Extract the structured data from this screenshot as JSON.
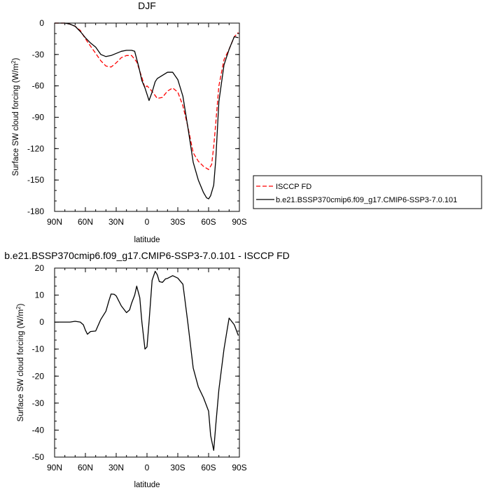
{
  "chart_data": [
    {
      "type": "line",
      "title": "DJF",
      "xlabel": "latitude",
      "ylabel": "Surface SW cloud forcing (W/m²)",
      "ylim": [
        -180,
        0
      ],
      "xlim": [
        90,
        -90
      ],
      "xticks": [
        90,
        60,
        30,
        0,
        -30,
        -60,
        -90
      ],
      "xtick_labels": [
        "90N",
        "60N",
        "30N",
        "0",
        "30S",
        "60S",
        "90S"
      ],
      "yticks": [
        0,
        -30,
        -60,
        -90,
        -120,
        -150,
        -180
      ],
      "ytick_labels": [
        "0",
        "-30",
        "-60",
        "-90",
        "-120",
        "-150",
        "-180"
      ],
      "grid": false,
      "legend_position": "right",
      "series": [
        {
          "name": "ISCCP FD",
          "color": "#ff0000",
          "dash": "dashed",
          "x": [
            90,
            85,
            80,
            75,
            70,
            65,
            60,
            55,
            50,
            45,
            40,
            35,
            30,
            25,
            20,
            15,
            10,
            5,
            2,
            0,
            -3,
            -7,
            -10,
            -15,
            -20,
            -25,
            -30,
            -35,
            -40,
            -45,
            -50,
            -55,
            -60,
            -63,
            -65,
            -67,
            -70,
            -75,
            -80,
            -85,
            -89
          ],
          "y": [
            0,
            0,
            0,
            -1,
            -3,
            -7,
            -15,
            -22,
            -29,
            -36,
            -41,
            -42,
            -38,
            -33,
            -31,
            -31,
            -37,
            -52,
            -62,
            -60,
            -63,
            -68,
            -72,
            -71,
            -65,
            -62,
            -66,
            -79,
            -100,
            -124,
            -132,
            -137,
            -140,
            -135,
            -118,
            -95,
            -60,
            -35,
            -25,
            -13,
            -9
          ]
        },
        {
          "name": "b.e21.BSSP370cmip6.f09_g17.CMIP6-SSP3-7.0.101",
          "color": "#000000",
          "dash": "solid",
          "x": [
            90,
            85,
            80,
            75,
            70,
            65,
            60,
            55,
            50,
            45,
            40,
            35,
            30,
            25,
            20,
            15,
            12,
            8,
            5,
            2,
            0,
            -2,
            -5,
            -8,
            -10,
            -15,
            -20,
            -25,
            -30,
            -35,
            -40,
            -45,
            -50,
            -55,
            -58,
            -60,
            -62,
            -65,
            -67,
            -70,
            -75,
            -80,
            -85,
            -89
          ],
          "y": [
            0,
            0,
            0,
            -1,
            -3,
            -8,
            -14,
            -19,
            -23,
            -30,
            -32,
            -31,
            -29,
            -27,
            -26,
            -26,
            -27,
            -42,
            -55,
            -62,
            -68,
            -74,
            -66,
            -56,
            -53,
            -50,
            -47,
            -47,
            -54,
            -70,
            -101,
            -133,
            -150,
            -162,
            -167,
            -168,
            -165,
            -155,
            -130,
            -75,
            -40,
            -25,
            -13,
            -14
          ]
        }
      ]
    },
    {
      "type": "line",
      "title": "b.e21.BSSP370cmip6.f09_g17.CMIP6-SSP3-7.0.101 - ISCCP FD",
      "xlabel": "latitude",
      "ylabel": "Surface SW cloud forcing (W/m²)",
      "ylim": [
        -50,
        20
      ],
      "xlim": [
        90,
        -90
      ],
      "xticks": [
        90,
        60,
        30,
        0,
        -30,
        -60,
        -90
      ],
      "xtick_labels": [
        "90N",
        "60N",
        "30N",
        "0",
        "30S",
        "60S",
        "90S"
      ],
      "yticks": [
        20,
        10,
        0,
        -10,
        -20,
        -30,
        -40,
        -50
      ],
      "ytick_labels": [
        "20",
        "10",
        "0",
        "-10",
        "-20",
        "-30",
        "-40",
        "-50"
      ],
      "grid": false,
      "series": [
        {
          "color": "#000000",
          "dash": "solid",
          "x": [
            90,
            80,
            75,
            70,
            65,
            62,
            60,
            58,
            55,
            50,
            45,
            40,
            37,
            35,
            32,
            30,
            25,
            20,
            17,
            15,
            12,
            10,
            7,
            5,
            2,
            0,
            -2,
            -5,
            -8,
            -10,
            -12,
            -15,
            -18,
            -20,
            -25,
            -30,
            -35,
            -37,
            -40,
            -45,
            -50,
            -55,
            -60,
            -62,
            -65,
            -67,
            -70,
            -75,
            -78,
            -80,
            -85,
            -89
          ],
          "y": [
            0,
            0,
            0,
            0.3,
            0,
            -1,
            -3,
            -4.5,
            -3.5,
            -3.3,
            1,
            4,
            8,
            10.4,
            10.3,
            9.7,
            6,
            3.5,
            4.5,
            7,
            10,
            13.3,
            9,
            0,
            -10,
            -9.2,
            0,
            15.5,
            18.8,
            17.5,
            15,
            14.7,
            16,
            16.2,
            17.2,
            16.3,
            14,
            8,
            -1,
            -17,
            -24,
            -28,
            -33,
            -42,
            -47.5,
            -38,
            -25,
            -10,
            -3,
            1.5,
            -1,
            -5
          ]
        }
      ]
    }
  ]
}
